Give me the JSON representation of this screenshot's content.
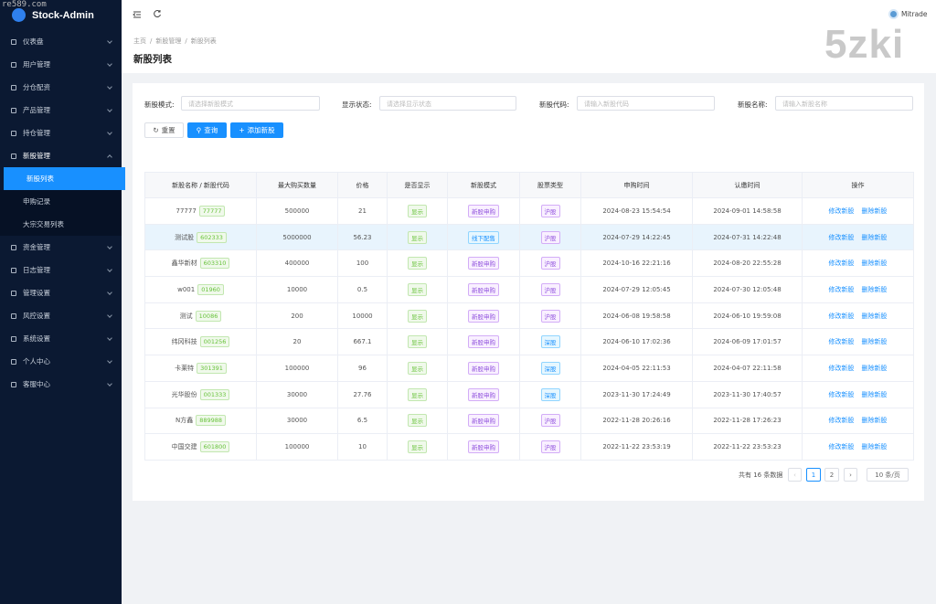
{
  "watermark": {
    "site": "re589.com",
    "brand": "5zki"
  },
  "sidebar": {
    "logo": "Stock-Admin",
    "menu": [
      {
        "label": "仪表盘"
      },
      {
        "label": "用户管理"
      },
      {
        "label": "分仓配资"
      },
      {
        "label": "产品管理"
      },
      {
        "label": "持仓管理"
      },
      {
        "label": "新股管理",
        "children": [
          "新股列表",
          "申购记录",
          "大宗交易列表"
        ]
      },
      {
        "label": "资金管理"
      },
      {
        "label": "日志管理"
      },
      {
        "label": "管理设置"
      },
      {
        "label": "风控设置"
      },
      {
        "label": "系统设置"
      },
      {
        "label": "个人中心"
      },
      {
        "label": "客服中心"
      }
    ]
  },
  "header": {
    "user": "Mitrade"
  },
  "breadcrumb": [
    "主页",
    "新股管理",
    "新股列表"
  ],
  "page_title": "新股列表",
  "filters": [
    {
      "label": "新股模式:",
      "placeholder": "请选择新股模式"
    },
    {
      "label": "显示状态:",
      "placeholder": "请选择显示状态"
    },
    {
      "label": "新股代码:",
      "placeholder": "请输入新股代码"
    },
    {
      "label": "新股名称:",
      "placeholder": "请输入新股名称"
    }
  ],
  "buttons": [
    "重置",
    "查询",
    "添加新股"
  ],
  "table": {
    "columns": [
      "新股名称 / 新股代码",
      "最大购买数量",
      "价格",
      "是否显示",
      "新股模式",
      "股票类型",
      "申购时间",
      "认缴时间",
      "操作"
    ],
    "rows": [
      [
        "77777",
        "77777",
        "500000",
        "21",
        "显示",
        "新股申购",
        "沪股",
        "2024-08-23 15:54:54",
        "2024-09-01 14:58:58",
        "修改新股",
        "删除新股"
      ],
      [
        "测试股",
        "602333",
        "5000000",
        "56.23",
        "显示",
        "线下配售",
        "沪股",
        "2024-07-29 14:22:45",
        "2024-07-31 14:22:48",
        "修改新股",
        "删除新股"
      ],
      [
        "鑫华新材",
        "603310",
        "400000",
        "100",
        "显示",
        "新股申购",
        "沪股",
        "2024-10-16 22:21:16",
        "2024-08-20 22:55:28",
        "修改新股",
        "删除新股"
      ],
      [
        "w001",
        "01960",
        "10000",
        "0.5",
        "显示",
        "新股申购",
        "沪股",
        "2024-07-29 12:05:45",
        "2024-07-30 12:05:48",
        "修改新股",
        "删除新股"
      ],
      [
        "测试",
        "10086",
        "200",
        "10000",
        "显示",
        "新股申购",
        "沪股",
        "2024-06-08 19:58:58",
        "2024-06-10 19:59:08",
        "修改新股",
        "删除新股"
      ],
      [
        "纬冈科技",
        "001256",
        "20",
        "667.1",
        "显示",
        "新股申购",
        "深股",
        "2024-06-10 17:02:36",
        "2024-06-09 17:01:57",
        "修改新股",
        "删除新股"
      ],
      [
        "卡莱特",
        "301391",
        "100000",
        "96",
        "显示",
        "新股申购",
        "深股",
        "2024-04-05 22:11:53",
        "2024-04-07 22:11:58",
        "修改新股",
        "删除新股"
      ],
      [
        "光华股份",
        "001333",
        "30000",
        "27.76",
        "显示",
        "新股申购",
        "深股",
        "2023-11-30 17:24:49",
        "2023-11-30 17:40:57",
        "修改新股",
        "删除新股"
      ],
      [
        "N方鑫",
        "889988",
        "30000",
        "6.5",
        "显示",
        "新股申购",
        "沪股",
        "2022-11-28 20:26:16",
        "2022-11-28 17:26:23",
        "修改新股",
        "删除新股"
      ],
      [
        "中国交建",
        "601800",
        "100000",
        "10",
        "显示",
        "新股申购",
        "沪股",
        "2022-11-22 23:53:19",
        "2022-11-22 23:53:23",
        "修改新股",
        "删除新股"
      ]
    ]
  },
  "pagination": {
    "total": "共有 16 条数据",
    "pages": [
      "1",
      "2"
    ],
    "size": "10 条/页"
  }
}
